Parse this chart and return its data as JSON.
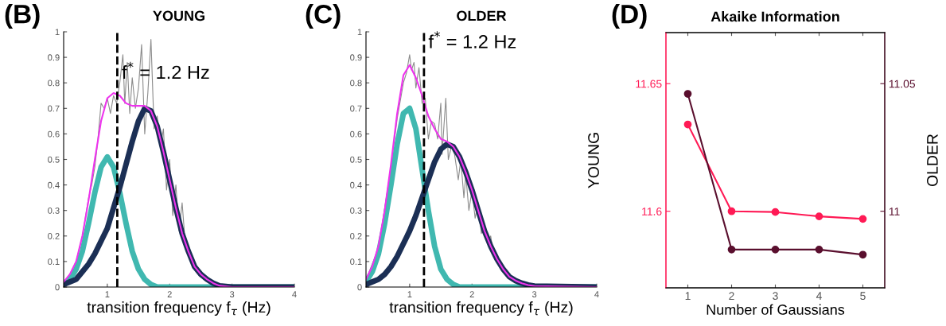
{
  "chart_data": [
    {
      "type": "line",
      "title": "YOUNG",
      "xlabel": "transition frequency f$_{τ}$ (Hz)",
      "xlim": [
        0.3,
        4
      ],
      "xticks": [
        1,
        2,
        3,
        4
      ],
      "ylim": [
        0,
        1
      ],
      "yticks": [
        0,
        0.1,
        0.2,
        0.3,
        0.4,
        0.5,
        0.6,
        0.7,
        0.8,
        0.9,
        1
      ],
      "grid": false,
      "marker": "none",
      "annotations": [
        "(B)",
        {
          "text": "f$^{*}$ = 1.2 Hz",
          "x": 1.16,
          "y": 0.8
        }
      ],
      "ref_lines": [
        {
          "axis": "x",
          "value": 1.16,
          "color": "#000000",
          "line_style": "dashed"
        }
      ],
      "series": [
        {
          "color": "#8c8c8c",
          "x": [
            0.3,
            0.4,
            0.5,
            0.6,
            0.7,
            0.75,
            0.8,
            0.85,
            0.9,
            0.95,
            1.0,
            1.05,
            1.1,
            1.15,
            1.2,
            1.25,
            1.28,
            1.32,
            1.36,
            1.4,
            1.45,
            1.5,
            1.55,
            1.6,
            1.65,
            1.7,
            1.75,
            1.8,
            1.85,
            1.9,
            1.95,
            2.0,
            2.05,
            2.1,
            2.15,
            2.2,
            2.25,
            2.3,
            2.4,
            2.5,
            2.6,
            2.7
          ],
          "values": [
            0.02,
            0.05,
            0.1,
            0.2,
            0.35,
            0.4,
            0.47,
            0.58,
            0.72,
            0.7,
            0.74,
            0.68,
            0.75,
            0.72,
            0.8,
            0.91,
            0.72,
            0.88,
            0.68,
            0.82,
            0.7,
            0.78,
            0.95,
            0.6,
            0.76,
            0.97,
            0.62,
            0.67,
            0.55,
            0.62,
            0.38,
            0.5,
            0.28,
            0.4,
            0.22,
            0.33,
            0.17,
            0.15,
            0.08,
            0.05,
            0.03,
            0.01
          ]
        },
        {
          "color": "#40b8b0",
          "x": [
            0.3,
            0.4,
            0.5,
            0.6,
            0.7,
            0.8,
            0.9,
            1.0,
            1.1,
            1.2,
            1.3,
            1.4,
            1.5,
            1.6,
            1.7,
            1.8,
            2.0,
            4.0
          ],
          "values": [
            0.01,
            0.03,
            0.07,
            0.14,
            0.25,
            0.37,
            0.47,
            0.51,
            0.47,
            0.37,
            0.25,
            0.14,
            0.07,
            0.03,
            0.01,
            0,
            0,
            0
          ]
        },
        {
          "color": "#1b2f55",
          "x": [
            0.3,
            0.4,
            0.5,
            0.6,
            0.7,
            0.8,
            0.9,
            1.0,
            1.1,
            1.2,
            1.3,
            1.4,
            1.5,
            1.6,
            1.7,
            1.8,
            1.9,
            2.0,
            2.1,
            2.2,
            2.3,
            2.4,
            2.5,
            2.6,
            2.7,
            2.8,
            3.0,
            4.0
          ],
          "values": [
            0.01,
            0.02,
            0.03,
            0.06,
            0.09,
            0.13,
            0.18,
            0.23,
            0.31,
            0.39,
            0.48,
            0.57,
            0.65,
            0.7,
            0.69,
            0.63,
            0.53,
            0.42,
            0.31,
            0.21,
            0.14,
            0.08,
            0.05,
            0.03,
            0.015,
            0.005,
            0,
            0
          ]
        },
        {
          "color": "#ee33ee",
          "x": [
            0.3,
            0.4,
            0.5,
            0.6,
            0.7,
            0.8,
            0.9,
            1.0,
            1.1,
            1.2,
            1.3,
            1.4,
            1.5,
            1.6,
            1.7,
            1.8,
            1.9,
            2.0,
            2.1,
            2.2,
            2.3,
            2.4,
            2.5,
            2.6,
            2.7,
            2.8,
            3.0,
            4.0
          ],
          "values": [
            0.02,
            0.05,
            0.1,
            0.2,
            0.34,
            0.5,
            0.65,
            0.74,
            0.76,
            0.75,
            0.72,
            0.71,
            0.71,
            0.71,
            0.69,
            0.63,
            0.53,
            0.42,
            0.31,
            0.21,
            0.14,
            0.08,
            0.05,
            0.03,
            0.015,
            0.005,
            0,
            0
          ]
        }
      ]
    },
    {
      "type": "line",
      "title": "OLDER",
      "xlabel": "transition frequency f$_{τ}$ (Hz)",
      "xlim": [
        0.3,
        4
      ],
      "xticks": [
        1,
        2,
        3,
        4
      ],
      "ylim": [
        0,
        1
      ],
      "yticks": [
        0,
        0.1,
        0.2,
        0.3,
        0.4,
        0.5,
        0.6,
        0.7,
        0.8,
        0.9,
        1
      ],
      "grid": false,
      "marker": "none",
      "annotations": [
        "(C)",
        {
          "text": "f$^{*}$ = 1.2 Hz",
          "x": 1.23,
          "y": 0.92
        }
      ],
      "ref_lines": [
        {
          "axis": "x",
          "value": 1.23,
          "color": "#000000",
          "line_style": "dashed"
        }
      ],
      "series": [
        {
          "color": "#8c8c8c",
          "x": [
            0.3,
            0.5,
            0.7,
            0.8,
            0.9,
            0.95,
            1.0,
            1.03,
            1.07,
            1.1,
            1.15,
            1.2,
            1.25,
            1.3,
            1.35,
            1.4,
            1.45,
            1.5,
            1.52,
            1.55,
            1.58,
            1.62,
            1.67,
            1.72,
            1.78,
            1.82,
            1.87,
            1.9,
            1.95,
            2.0,
            2.05,
            2.1,
            2.15,
            2.2,
            2.25,
            2.3,
            2.35,
            2.4,
            2.5,
            2.6,
            2.7
          ],
          "values": [
            0.03,
            0.15,
            0.47,
            0.66,
            0.8,
            0.84,
            0.91,
            0.85,
            0.88,
            0.78,
            0.86,
            0.72,
            0.74,
            0.58,
            0.65,
            0.64,
            0.58,
            0.72,
            0.52,
            0.63,
            0.74,
            0.5,
            0.55,
            0.52,
            0.42,
            0.5,
            0.35,
            0.44,
            0.3,
            0.38,
            0.27,
            0.33,
            0.21,
            0.24,
            0.17,
            0.2,
            0.12,
            0.1,
            0.07,
            0.04,
            0.02
          ]
        },
        {
          "color": "#40b8b0",
          "x": [
            0.3,
            0.4,
            0.5,
            0.6,
            0.7,
            0.8,
            0.9,
            1.0,
            1.1,
            1.2,
            1.3,
            1.4,
            1.5,
            1.6,
            1.7,
            1.8,
            4.0
          ],
          "values": [
            0.02,
            0.06,
            0.13,
            0.25,
            0.4,
            0.56,
            0.68,
            0.7,
            0.62,
            0.46,
            0.3,
            0.16,
            0.07,
            0.03,
            0.01,
            0,
            0
          ]
        },
        {
          "color": "#1b2f55",
          "x": [
            0.3,
            0.4,
            0.5,
            0.6,
            0.7,
            0.8,
            0.9,
            1.0,
            1.1,
            1.2,
            1.3,
            1.4,
            1.5,
            1.6,
            1.7,
            1.8,
            1.9,
            2.0,
            2.1,
            2.2,
            2.3,
            2.4,
            2.5,
            2.6,
            2.7,
            2.8,
            2.9,
            3.0,
            4.0
          ],
          "values": [
            0.01,
            0.02,
            0.03,
            0.05,
            0.08,
            0.12,
            0.17,
            0.22,
            0.28,
            0.35,
            0.42,
            0.49,
            0.54,
            0.56,
            0.55,
            0.51,
            0.45,
            0.38,
            0.3,
            0.22,
            0.16,
            0.11,
            0.07,
            0.04,
            0.025,
            0.015,
            0.008,
            0.004,
            0
          ]
        },
        {
          "color": "#ee33ee",
          "x": [
            0.3,
            0.4,
            0.5,
            0.6,
            0.7,
            0.8,
            0.9,
            1.0,
            1.1,
            1.2,
            1.3,
            1.4,
            1.5,
            1.6,
            1.7,
            1.8,
            1.9,
            2.0,
            2.1,
            2.2,
            2.3,
            2.4,
            2.5,
            2.6,
            2.7,
            2.8,
            2.9,
            3.0,
            4.0
          ],
          "values": [
            0.03,
            0.08,
            0.16,
            0.3,
            0.48,
            0.68,
            0.83,
            0.87,
            0.82,
            0.75,
            0.67,
            0.62,
            0.58,
            0.57,
            0.55,
            0.51,
            0.45,
            0.38,
            0.3,
            0.22,
            0.16,
            0.11,
            0.07,
            0.04,
            0.025,
            0.015,
            0.008,
            0.004,
            0
          ]
        }
      ]
    },
    {
      "type": "line",
      "title": "Akaike Information",
      "xlabel": "Number of Gaussians",
      "ylabel": "YOUNG",
      "y2label": "OLDER",
      "xlim": [
        0.5,
        5.5
      ],
      "xticks": [
        1,
        2,
        3,
        4,
        5
      ],
      "ylim": [
        11.57,
        11.67
      ],
      "yticks": [
        11.6,
        11.65
      ],
      "y2lim": [
        10.97,
        11.07
      ],
      "y2ticks": [
        11,
        11.05
      ],
      "grid": false,
      "marker": "circle",
      "annotations": [
        "(D)"
      ],
      "series": [
        {
          "color": "#ff1a55",
          "x": [
            1,
            2,
            3,
            4,
            5
          ],
          "values": [
            11.634,
            11.6,
            11.5997,
            11.598,
            11.597
          ]
        },
        {
          "color": "#5a0f2e",
          "axis": "y2",
          "x": [
            1,
            2,
            3,
            4,
            5
          ],
          "values": [
            11.046,
            10.985,
            10.985,
            10.985,
            10.983
          ]
        }
      ]
    }
  ]
}
